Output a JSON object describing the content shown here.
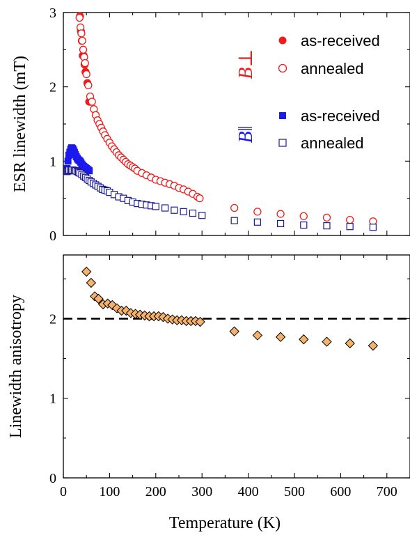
{
  "chart_data": [
    {
      "type": "scatter",
      "ylabel": "ESR linewidth (mT)",
      "xlim": [
        0,
        750
      ],
      "ylim": [
        0,
        3
      ],
      "xticks": [
        0,
        100,
        200,
        300,
        400,
        500,
        600,
        700
      ],
      "yticks": [
        0,
        1,
        2,
        3
      ],
      "legend_position": "top-right",
      "legend_groups": [
        {
          "label": "B⊥",
          "color": "#ee1c1c"
        },
        {
          "label": "B‖",
          "color": "#1a1aee"
        }
      ],
      "series": [
        {
          "name": "as-received",
          "group": "B⊥",
          "marker": "circle-filled",
          "color": "#ee1c1c",
          "x": [
            36,
            38,
            40,
            42,
            44,
            46,
            48,
            52,
            56,
            60
          ],
          "y": [
            2.95,
            2.75,
            2.62,
            2.42,
            2.42,
            2.3,
            2.2,
            2.05,
            1.8,
            1.8
          ]
        },
        {
          "name": "annealed",
          "group": "B⊥",
          "marker": "circle-open",
          "color": "#ee1c1c",
          "x": [
            35,
            37,
            39,
            41,
            43,
            45,
            47,
            50,
            54,
            58,
            62,
            66,
            70,
            74,
            78,
            82,
            86,
            90,
            95,
            100,
            105,
            110,
            115,
            120,
            125,
            130,
            135,
            140,
            145,
            150,
            155,
            160,
            170,
            180,
            190,
            200,
            210,
            220,
            230,
            240,
            250,
            260,
            270,
            280,
            290,
            295,
            370,
            420,
            470,
            520,
            570,
            620,
            670
          ],
          "y": [
            2.93,
            2.8,
            2.72,
            2.62,
            2.5,
            2.4,
            2.32,
            2.17,
            2.02,
            1.87,
            1.8,
            1.7,
            1.62,
            1.55,
            1.5,
            1.45,
            1.4,
            1.35,
            1.3,
            1.25,
            1.2,
            1.16,
            1.12,
            1.08,
            1.05,
            1.02,
            0.99,
            0.96,
            0.94,
            0.92,
            0.9,
            0.87,
            0.84,
            0.81,
            0.78,
            0.75,
            0.73,
            0.71,
            0.69,
            0.67,
            0.64,
            0.62,
            0.59,
            0.56,
            0.52,
            0.5,
            0.37,
            0.32,
            0.29,
            0.26,
            0.24,
            0.21,
            0.19
          ]
        },
        {
          "name": "as-received",
          "group": "B‖",
          "marker": "square-filled",
          "color": "#1a1aee",
          "x": [
            8,
            10,
            12,
            14,
            16,
            18,
            20,
            22,
            24,
            26,
            28,
            30,
            32,
            34,
            36,
            38,
            40,
            42,
            44,
            46,
            48,
            50,
            52,
            54,
            56
          ],
          "y": [
            0.9,
            1.0,
            1.08,
            1.12,
            1.16,
            1.18,
            1.17,
            1.15,
            1.12,
            1.09,
            1.06,
            1.04,
            1.02,
            1.01,
            1.0,
            0.98,
            0.96,
            0.94,
            0.93,
            0.92,
            0.91,
            0.9,
            0.89,
            0.88,
            0.87
          ]
        },
        {
          "name": "annealed",
          "group": "B‖",
          "marker": "square-open",
          "color": "#1a1a8c",
          "x": [
            8,
            10,
            12,
            15,
            18,
            21,
            24,
            27,
            30,
            33,
            36,
            40,
            44,
            48,
            52,
            56,
            60,
            65,
            70,
            75,
            80,
            85,
            90,
            95,
            100,
            110,
            120,
            130,
            140,
            150,
            160,
            170,
            180,
            190,
            200,
            220,
            240,
            260,
            280,
            300,
            370,
            420,
            470,
            520,
            570,
            620,
            670
          ],
          "y": [
            0.86,
            0.87,
            0.88,
            0.88,
            0.88,
            0.88,
            0.87,
            0.87,
            0.86,
            0.85,
            0.84,
            0.82,
            0.8,
            0.78,
            0.76,
            0.74,
            0.72,
            0.7,
            0.68,
            0.66,
            0.64,
            0.62,
            0.61,
            0.6,
            0.58,
            0.55,
            0.52,
            0.5,
            0.47,
            0.45,
            0.43,
            0.42,
            0.41,
            0.4,
            0.39,
            0.37,
            0.34,
            0.32,
            0.3,
            0.27,
            0.2,
            0.18,
            0.16,
            0.14,
            0.13,
            0.12,
            0.11
          ]
        }
      ]
    },
    {
      "type": "scatter",
      "xlabel": "Temperature (K)",
      "ylabel": "Linewidth anisotropy",
      "xlim": [
        0,
        750
      ],
      "ylim": [
        0,
        2.8
      ],
      "xticks": [
        0,
        100,
        200,
        300,
        400,
        500,
        600,
        700
      ],
      "yticks": [
        0,
        1,
        2
      ],
      "reference_line": {
        "y": 2,
        "style": "dashed"
      },
      "series": [
        {
          "marker": "diamond",
          "color": "#f6b26b",
          "x": [
            50,
            60,
            68,
            76,
            86,
            96,
            106,
            116,
            126,
            136,
            146,
            156,
            166,
            176,
            186,
            196,
            206,
            216,
            226,
            236,
            246,
            256,
            266,
            276,
            286,
            296,
            370,
            420,
            470,
            520,
            570,
            620,
            670
          ],
          "y": [
            2.59,
            2.45,
            2.28,
            2.25,
            2.18,
            2.19,
            2.17,
            2.13,
            2.1,
            2.1,
            2.07,
            2.06,
            2.05,
            2.04,
            2.03,
            2.03,
            2.03,
            2.02,
            2.0,
            1.99,
            1.98,
            1.98,
            1.97,
            1.97,
            1.97,
            1.96,
            1.84,
            1.79,
            1.77,
            1.74,
            1.71,
            1.69,
            1.66
          ]
        }
      ]
    }
  ]
}
